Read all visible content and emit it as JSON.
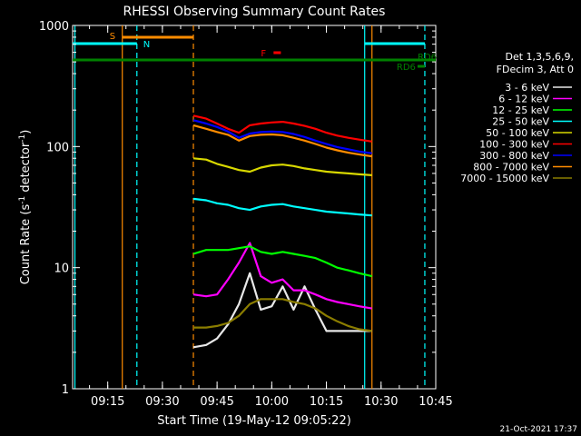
{
  "chart_data": {
    "type": "line",
    "title": "RHESSI Observing Summary Count Rates",
    "xlabel": "Start Time (19-May-12 09:05:22)",
    "ylabel_parts": [
      "Count Rate (s",
      "-1",
      " detector",
      "-1",
      ")"
    ],
    "yscale": "log",
    "ylim": [
      1,
      1000
    ],
    "xlim": [
      "09:05:22",
      "10:45:00"
    ],
    "y_ticks": [
      {
        "value": 1,
        "label": "1"
      },
      {
        "value": 10,
        "label": "10"
      },
      {
        "value": 100,
        "label": "100"
      },
      {
        "value": 1000,
        "label": "1000"
      }
    ],
    "x_ticks": [
      {
        "value": "09:15",
        "label": "09:15"
      },
      {
        "value": "09:30",
        "label": "09:30"
      },
      {
        "value": "09:45",
        "label": "09:45"
      },
      {
        "value": "10:00",
        "label": "10:00"
      },
      {
        "value": "10:15",
        "label": "10:15"
      },
      {
        "value": "10:30",
        "label": "10:30"
      },
      {
        "value": "10:45",
        "label": "10:45"
      }
    ],
    "info_lines": [
      "Det 1,3,5,6,9,",
      "FDecim 3, Att 0"
    ],
    "legend_position": "right",
    "series": [
      {
        "name": "3 - 6 keV",
        "color": "#e8e8e8",
        "x": [
          "09:38:30",
          "09:42:00",
          "09:45:00",
          "09:48:00",
          "09:51:00",
          "09:54:00",
          "09:57:00",
          "10:00:00",
          "10:03:00",
          "10:06:00",
          "10:09:00",
          "10:12:00",
          "10:15:00",
          "10:18:00",
          "10:21:00",
          "10:24:00",
          "10:27:30"
        ],
        "values": [
          2.2,
          2.3,
          2.6,
          3.4,
          5,
          9,
          4.5,
          4.8,
          7,
          4.5,
          7,
          4.5,
          3,
          3,
          3,
          3,
          3
        ]
      },
      {
        "name": "6 - 12 keV",
        "color": "#ff00ff",
        "x": [
          "09:38:30",
          "09:42:00",
          "09:45:00",
          "09:48:00",
          "09:51:00",
          "09:54:00",
          "09:57:00",
          "10:00:00",
          "10:03:00",
          "10:06:00",
          "10:09:00",
          "10:12:00",
          "10:15:00",
          "10:18:00",
          "10:21:00",
          "10:24:00",
          "10:27:30"
        ],
        "values": [
          6,
          5.8,
          6,
          8,
          11,
          16,
          8.5,
          7.5,
          8,
          6.5,
          6.5,
          6,
          5.5,
          5.2,
          5,
          4.8,
          4.6
        ]
      },
      {
        "name": "12 - 25 keV",
        "color": "#00ff00",
        "x": [
          "09:38:30",
          "09:42:00",
          "09:45:00",
          "09:48:00",
          "09:51:00",
          "09:54:00",
          "09:57:00",
          "10:00:00",
          "10:03:00",
          "10:06:00",
          "10:09:00",
          "10:12:00",
          "10:15:00",
          "10:18:00",
          "10:21:00",
          "10:24:00",
          "10:27:30"
        ],
        "values": [
          13,
          14,
          14,
          14,
          14.5,
          15,
          13.5,
          13,
          13.5,
          13,
          12.5,
          12,
          11,
          10,
          9.5,
          9,
          8.5
        ]
      },
      {
        "name": "25 - 50 keV",
        "color": "#00ffff",
        "x": [
          "09:38:30",
          "09:42:00",
          "09:45:00",
          "09:48:00",
          "09:51:00",
          "09:54:00",
          "09:57:00",
          "10:00:00",
          "10:03:00",
          "10:06:00",
          "10:09:00",
          "10:12:00",
          "10:15:00",
          "10:18:00",
          "10:21:00",
          "10:24:00",
          "10:27:30"
        ],
        "values": [
          37,
          36,
          34,
          33,
          31,
          30,
          32,
          33,
          33.5,
          32,
          31,
          30,
          29,
          28.5,
          28,
          27.5,
          27
        ]
      },
      {
        "name": "50 - 100 keV",
        "color": "#d8d800",
        "x": [
          "09:38:30",
          "09:42:00",
          "09:45:00",
          "09:48:00",
          "09:51:00",
          "09:54:00",
          "09:57:00",
          "10:00:00",
          "10:03:00",
          "10:06:00",
          "10:09:00",
          "10:12:00",
          "10:15:00",
          "10:18:00",
          "10:21:00",
          "10:24:00",
          "10:27:30"
        ],
        "values": [
          80,
          78,
          72,
          68,
          64,
          62,
          67,
          70,
          71,
          69,
          66,
          64,
          62,
          61,
          60,
          59,
          58
        ]
      },
      {
        "name": "100 - 300 keV",
        "color": "#ff0000",
        "x": [
          "09:38:30",
          "09:42:00",
          "09:45:00",
          "09:48:00",
          "09:51:00",
          "09:54:00",
          "09:57:00",
          "10:00:00",
          "10:03:00",
          "10:06:00",
          "10:09:00",
          "10:12:00",
          "10:15:00",
          "10:18:00",
          "10:21:00",
          "10:24:00",
          "10:27:30"
        ],
        "values": [
          180,
          170,
          155,
          140,
          130,
          150,
          155,
          158,
          160,
          155,
          148,
          140,
          130,
          123,
          118,
          114,
          110
        ]
      },
      {
        "name": "300 - 800 keV",
        "color": "#0000ff",
        "x": [
          "09:38:30",
          "09:42:00",
          "09:45:00",
          "09:48:00",
          "09:51:00",
          "09:54:00",
          "09:57:00",
          "10:00:00",
          "10:03:00",
          "10:06:00",
          "10:09:00",
          "10:12:00",
          "10:15:00",
          "10:18:00",
          "10:21:00",
          "10:24:00",
          "10:27:30"
        ],
        "values": [
          165,
          155,
          145,
          133,
          118,
          128,
          132,
          133,
          132,
          127,
          120,
          112,
          105,
          99,
          95,
          91,
          88
        ]
      },
      {
        "name": "800 - 7000 keV",
        "color": "#ff8c00",
        "x": [
          "09:38:30",
          "09:42:00",
          "09:45:00",
          "09:48:00",
          "09:51:00",
          "09:54:00",
          "09:57:00",
          "10:00:00",
          "10:03:00",
          "10:06:00",
          "10:09:00",
          "10:12:00",
          "10:15:00",
          "10:18:00",
          "10:21:00",
          "10:24:00",
          "10:27:30"
        ],
        "values": [
          150,
          140,
          132,
          125,
          112,
          122,
          125,
          126,
          124,
          118,
          112,
          105,
          98,
          93,
          89,
          86,
          83
        ]
      },
      {
        "name": "7000 - 15000 keV",
        "color": "#8b7d00",
        "x": [
          "09:38:30",
          "09:42:00",
          "09:45:00",
          "09:48:00",
          "09:51:00",
          "09:54:00",
          "09:57:00",
          "10:00:00",
          "10:03:00",
          "10:06:00",
          "10:09:00",
          "10:12:00",
          "10:15:00",
          "10:18:00",
          "10:21:00",
          "10:24:00",
          "10:27:30"
        ],
        "values": [
          3.2,
          3.2,
          3.3,
          3.5,
          4,
          5,
          5.5,
          5.5,
          5.5,
          5.2,
          5,
          4.6,
          4,
          3.6,
          3.3,
          3.1,
          3
        ]
      }
    ],
    "vertical_markers": [
      {
        "x": "09:06:00",
        "color": "#00ffff",
        "style": "solid"
      },
      {
        "x": "09:19:00",
        "color": "#ff8c00",
        "style": "solid"
      },
      {
        "x": "09:23:00",
        "color": "#00ffff",
        "style": "dashed"
      },
      {
        "x": "09:38:30",
        "color": "#ff8c00",
        "style": "dashed"
      },
      {
        "x": "10:25:30",
        "color": "#00ffff",
        "style": "solid"
      },
      {
        "x": "10:27:30",
        "color": "#ff8c00",
        "style": "solid"
      },
      {
        "x": "10:42:00",
        "color": "#00ffff",
        "style": "dashed"
      }
    ],
    "flag_bars": [
      {
        "label": "S",
        "color": "#ff8c00",
        "x_start": "09:19:00",
        "x_end": "09:38:30",
        "row": 1
      },
      {
        "label": "N",
        "color": "#00ffff",
        "x_start": "09:05:22",
        "x_end": "09:23:00",
        "row": 2
      },
      {
        "label": "",
        "color": "#00ffff",
        "x_start": "10:25:30",
        "x_end": "10:42:00",
        "row": 2
      },
      {
        "label": "F",
        "color": "#ff0000",
        "x_start": "10:00:30",
        "x_end": "10:02:30",
        "row": 3
      },
      {
        "label": "RD6",
        "color": "#008000",
        "x_start": "09:05:22",
        "x_end": "10:45:00",
        "row": 4
      },
      {
        "label": "RD6",
        "color": "#008000",
        "x_start": "10:40:00",
        "x_end": "10:42:00",
        "row": 5
      }
    ],
    "timestamp": "21-Oct-2021 17:37"
  }
}
